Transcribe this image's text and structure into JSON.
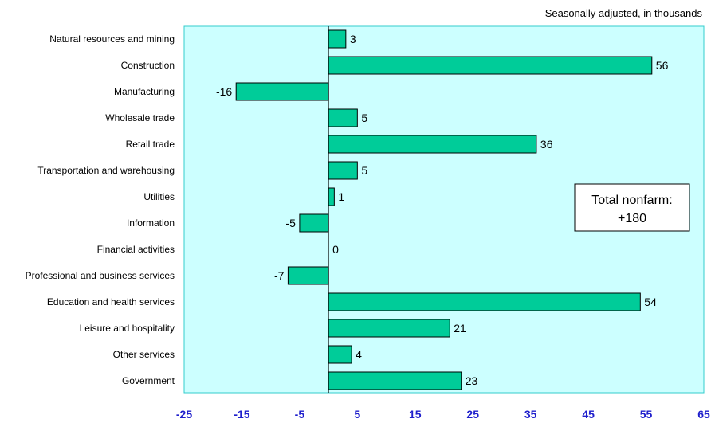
{
  "chart_data": {
    "type": "bar",
    "orientation": "horizontal",
    "note": "Seasonally adjusted, in thousands",
    "categories": [
      "Natural resources and mining",
      "Construction",
      "Manufacturing",
      "Wholesale trade",
      "Retail trade",
      "Transportation and warehousing",
      "Utilities",
      "Information",
      "Financial activities",
      "Professional and business services",
      "Education and health services",
      "Leisure and hospitality",
      "Other services",
      "Government"
    ],
    "values": [
      3,
      56,
      -16,
      5,
      36,
      5,
      1,
      -5,
      0,
      -7,
      54,
      21,
      4,
      23
    ],
    "xlim": [
      -25,
      65
    ],
    "xticks": [
      "-25",
      "-15",
      "-5",
      "5",
      "15",
      "25",
      "35",
      "45",
      "55",
      "65"
    ],
    "annotation": {
      "line1": "Total nonfarm:",
      "line2": "+180"
    },
    "colors": {
      "bar": "#00cc99",
      "plot_background": "#ccffff",
      "plot_border": "#33cccc",
      "tick_label": "#1f1fcc"
    },
    "grid": false
  }
}
